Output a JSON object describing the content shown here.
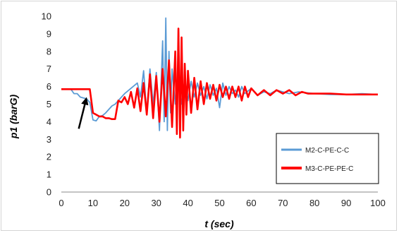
{
  "chart_data": {
    "type": "line",
    "title": "",
    "xlabel": "t (sec)",
    "ylabel": "p1 (barG)",
    "xlim": [
      0,
      100
    ],
    "ylim": [
      0,
      10
    ],
    "x_ticks": [
      "0",
      "10",
      "20",
      "30",
      "40",
      "50",
      "60",
      "70",
      "80",
      "90",
      "100"
    ],
    "y_ticks": [
      "0",
      "1",
      "2",
      "3",
      "4",
      "5",
      "6",
      "7",
      "8",
      "9",
      "10"
    ],
    "grid": "off",
    "legend_position": "lower-right",
    "series": [
      {
        "name": "M2-C-PE-C-C",
        "color": "#5b9bd5",
        "x": [
          0,
          3,
          4,
          5,
          6,
          7,
          8,
          9,
          10,
          11,
          12,
          13,
          14,
          15,
          16,
          17,
          18,
          19,
          20,
          22,
          24,
          25,
          26,
          27,
          28,
          29,
          30,
          31,
          32,
          32.5,
          33,
          33.5,
          34,
          34.5,
          35,
          36,
          37,
          38,
          39,
          40,
          41,
          42,
          43,
          44,
          45,
          46,
          47,
          48,
          49,
          50,
          51,
          52,
          53,
          54,
          55,
          56,
          57,
          58,
          60,
          62,
          64,
          66,
          68,
          70,
          72,
          75,
          80,
          85,
          90,
          95,
          100
        ],
        "y": [
          5.85,
          5.85,
          5.6,
          5.6,
          5.4,
          5.35,
          5.3,
          5.1,
          4.1,
          4.05,
          4.3,
          4.35,
          4.5,
          4.7,
          4.9,
          5.0,
          5.2,
          5.4,
          5.6,
          5.9,
          6.2,
          5.4,
          6.9,
          4.5,
          7.0,
          5.0,
          6.8,
          3.5,
          8.6,
          4.0,
          9.9,
          3.5,
          8.0,
          4.5,
          7.0,
          5.0,
          6.5,
          5.0,
          6.4,
          5.2,
          6.3,
          5.4,
          6.2,
          5.5,
          6.0,
          5.3,
          6.1,
          5.5,
          5.9,
          4.8,
          6.2,
          5.5,
          6.0,
          5.6,
          5.8,
          5.4,
          6.0,
          5.6,
          5.9,
          5.5,
          5.7,
          5.6,
          5.8,
          5.7,
          5.6,
          5.7,
          5.6,
          5.55,
          5.55,
          5.6,
          5.55
        ]
      },
      {
        "name": "M3-C-PE-PE-C",
        "color": "#ff0000",
        "x": [
          0,
          9,
          10,
          11,
          12,
          13,
          14,
          15,
          16,
          17,
          18,
          19,
          20,
          21,
          22,
          23,
          24,
          25,
          26,
          27,
          28,
          29,
          30,
          31,
          32,
          33,
          34,
          35,
          36,
          36.5,
          37,
          37.5,
          38,
          38.5,
          39,
          39.5,
          40,
          41,
          42,
          43,
          44,
          45,
          46,
          47,
          48,
          49,
          50,
          51,
          52,
          53,
          54,
          55,
          56,
          57,
          58,
          59,
          60,
          62,
          64,
          66,
          68,
          70,
          72,
          74,
          76,
          78,
          80,
          85,
          90,
          95,
          100
        ],
        "y": [
          5.85,
          5.85,
          4.5,
          4.4,
          4.3,
          4.3,
          4.2,
          4.2,
          4.15,
          4.15,
          5.2,
          5.1,
          5.4,
          5.0,
          5.7,
          4.8,
          5.9,
          4.6,
          6.2,
          4.4,
          6.7,
          4.2,
          6.6,
          4.0,
          7.0,
          4.3,
          7.5,
          3.7,
          8.0,
          3.3,
          9.3,
          3.1,
          8.8,
          3.5,
          7.3,
          4.4,
          6.9,
          4.5,
          6.5,
          4.7,
          6.3,
          5.0,
          6.2,
          5.3,
          6.1,
          5.2,
          6.1,
          5.4,
          6.0,
          5.3,
          6.0,
          5.4,
          6.0,
          5.2,
          6.0,
          5.4,
          5.9,
          5.5,
          5.8,
          5.5,
          5.8,
          5.6,
          5.8,
          5.5,
          5.7,
          5.6,
          5.6,
          5.6,
          5.55,
          5.55,
          5.55
        ]
      }
    ],
    "annotations": [
      {
        "type": "arrow",
        "from": [
          5.5,
          3.6
        ],
        "to": [
          8.0,
          5.4
        ],
        "color": "#000000"
      }
    ]
  }
}
